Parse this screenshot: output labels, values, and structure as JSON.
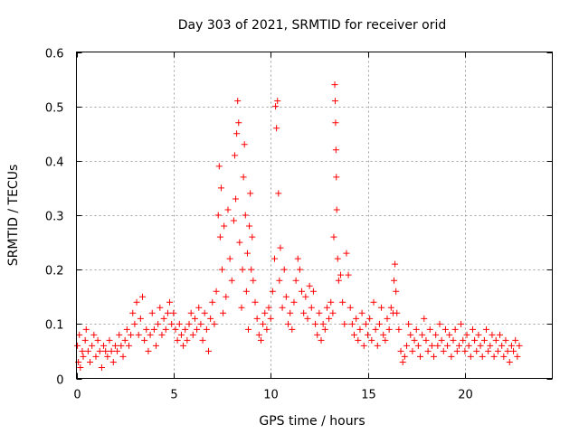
{
  "chart_data": {
    "type": "scatter",
    "title": "Day 303 of 2021, SRMTID for receiver orid",
    "xlabel": "GPS time / hours",
    "ylabel": "SRMTID / TECUs",
    "xlim": [
      0,
      24.5
    ],
    "ylim": [
      0,
      0.6
    ],
    "grid": true,
    "marker": "plus",
    "color": "#ff0000",
    "xticks": [
      0,
      5,
      10,
      15,
      20
    ],
    "xtick_labels": [
      "0",
      "5",
      "10",
      "15",
      "20"
    ],
    "yticks": [
      0,
      0.1,
      0.2,
      0.3,
      0.4,
      0.5,
      0.6
    ],
    "ytick_labels": [
      "0",
      "0.1",
      "0.2",
      "0.3",
      "0.4",
      "0.5",
      "0.6"
    ],
    "series": [
      {
        "name": "SRMTID",
        "points": [
          [
            0.05,
            0.06
          ],
          [
            0.1,
            0.03
          ],
          [
            0.15,
            0.08
          ],
          [
            0.2,
            0.02
          ],
          [
            0.3,
            0.05
          ],
          [
            0.35,
            0.04
          ],
          [
            0.45,
            0.07
          ],
          [
            0.5,
            0.09
          ],
          [
            0.6,
            0.05
          ],
          [
            0.7,
            0.03
          ],
          [
            0.8,
            0.06
          ],
          [
            0.9,
            0.08
          ],
          [
            1.0,
            0.04
          ],
          [
            1.1,
            0.07
          ],
          [
            1.2,
            0.05
          ],
          [
            1.3,
            0.02
          ],
          [
            1.4,
            0.06
          ],
          [
            1.5,
            0.05
          ],
          [
            1.6,
            0.04
          ],
          [
            1.7,
            0.07
          ],
          [
            1.8,
            0.05
          ],
          [
            1.9,
            0.03
          ],
          [
            2.0,
            0.06
          ],
          [
            2.1,
            0.05
          ],
          [
            2.2,
            0.08
          ],
          [
            2.3,
            0.06
          ],
          [
            2.4,
            0.04
          ],
          [
            2.5,
            0.07
          ],
          [
            2.6,
            0.09
          ],
          [
            2.7,
            0.06
          ],
          [
            2.8,
            0.08
          ],
          [
            2.9,
            0.12
          ],
          [
            3.0,
            0.1
          ],
          [
            3.1,
            0.14
          ],
          [
            3.2,
            0.08
          ],
          [
            3.3,
            0.11
          ],
          [
            3.4,
            0.15
          ],
          [
            3.5,
            0.07
          ],
          [
            3.6,
            0.09
          ],
          [
            3.7,
            0.05
          ],
          [
            3.8,
            0.08
          ],
          [
            3.9,
            0.12
          ],
          [
            4.0,
            0.09
          ],
          [
            4.1,
            0.06
          ],
          [
            4.2,
            0.1
          ],
          [
            4.3,
            0.13
          ],
          [
            4.4,
            0.08
          ],
          [
            4.5,
            0.11
          ],
          [
            4.6,
            0.09
          ],
          [
            4.7,
            0.12
          ],
          [
            4.8,
            0.14
          ],
          [
            4.9,
            0.1
          ],
          [
            5.0,
            0.12
          ],
          [
            5.1,
            0.09
          ],
          [
            5.2,
            0.07
          ],
          [
            5.3,
            0.1
          ],
          [
            5.4,
            0.08
          ],
          [
            5.5,
            0.06
          ],
          [
            5.6,
            0.09
          ],
          [
            5.7,
            0.07
          ],
          [
            5.8,
            0.1
          ],
          [
            5.9,
            0.12
          ],
          [
            6.0,
            0.08
          ],
          [
            6.1,
            0.11
          ],
          [
            6.2,
            0.09
          ],
          [
            6.3,
            0.13
          ],
          [
            6.4,
            0.1
          ],
          [
            6.5,
            0.07
          ],
          [
            6.6,
            0.12
          ],
          [
            6.7,
            0.09
          ],
          [
            6.8,
            0.05
          ],
          [
            6.9,
            0.11
          ],
          [
            7.0,
            0.14
          ],
          [
            7.1,
            0.1
          ],
          [
            7.2,
            0.16
          ],
          [
            7.3,
            0.3
          ],
          [
            7.35,
            0.39
          ],
          [
            7.4,
            0.26
          ],
          [
            7.45,
            0.35
          ],
          [
            7.5,
            0.2
          ],
          [
            7.55,
            0.12
          ],
          [
            7.6,
            0.28
          ],
          [
            7.7,
            0.15
          ],
          [
            7.8,
            0.31
          ],
          [
            7.9,
            0.22
          ],
          [
            8.0,
            0.18
          ],
          [
            8.1,
            0.29
          ],
          [
            8.15,
            0.41
          ],
          [
            8.2,
            0.33
          ],
          [
            8.25,
            0.45
          ],
          [
            8.3,
            0.51
          ],
          [
            8.35,
            0.47
          ],
          [
            8.4,
            0.25
          ],
          [
            8.5,
            0.13
          ],
          [
            8.55,
            0.2
          ],
          [
            8.6,
            0.37
          ],
          [
            8.65,
            0.43
          ],
          [
            8.7,
            0.3
          ],
          [
            8.75,
            0.16
          ],
          [
            8.8,
            0.23
          ],
          [
            8.85,
            0.09
          ],
          [
            8.9,
            0.28
          ],
          [
            8.95,
            0.34
          ],
          [
            9.0,
            0.2
          ],
          [
            9.05,
            0.26
          ],
          [
            9.1,
            0.18
          ],
          [
            9.2,
            0.14
          ],
          [
            9.3,
            0.11
          ],
          [
            9.4,
            0.08
          ],
          [
            9.5,
            0.07
          ],
          [
            9.6,
            0.1
          ],
          [
            9.7,
            0.12
          ],
          [
            9.8,
            0.09
          ],
          [
            9.9,
            0.13
          ],
          [
            10.0,
            0.11
          ],
          [
            10.1,
            0.16
          ],
          [
            10.2,
            0.22
          ],
          [
            10.25,
            0.5
          ],
          [
            10.3,
            0.46
          ],
          [
            10.35,
            0.51
          ],
          [
            10.4,
            0.34
          ],
          [
            10.45,
            0.18
          ],
          [
            10.5,
            0.24
          ],
          [
            10.6,
            0.13
          ],
          [
            10.7,
            0.2
          ],
          [
            10.8,
            0.15
          ],
          [
            10.9,
            0.1
          ],
          [
            11.0,
            0.12
          ],
          [
            11.1,
            0.09
          ],
          [
            11.2,
            0.14
          ],
          [
            11.3,
            0.18
          ],
          [
            11.4,
            0.22
          ],
          [
            11.5,
            0.2
          ],
          [
            11.6,
            0.16
          ],
          [
            11.7,
            0.12
          ],
          [
            11.8,
            0.15
          ],
          [
            11.9,
            0.11
          ],
          [
            12.0,
            0.17
          ],
          [
            12.1,
            0.13
          ],
          [
            12.2,
            0.16
          ],
          [
            12.3,
            0.1
          ],
          [
            12.4,
            0.08
          ],
          [
            12.5,
            0.12
          ],
          [
            12.6,
            0.07
          ],
          [
            12.7,
            0.1
          ],
          [
            12.8,
            0.09
          ],
          [
            12.9,
            0.13
          ],
          [
            13.0,
            0.11
          ],
          [
            13.1,
            0.14
          ],
          [
            13.2,
            0.12
          ],
          [
            13.25,
            0.26
          ],
          [
            13.3,
            0.54
          ],
          [
            13.32,
            0.51
          ],
          [
            13.34,
            0.47
          ],
          [
            13.36,
            0.42
          ],
          [
            13.38,
            0.37
          ],
          [
            13.4,
            0.31
          ],
          [
            13.45,
            0.22
          ],
          [
            13.5,
            0.18
          ],
          [
            13.6,
            0.19
          ],
          [
            13.7,
            0.14
          ],
          [
            13.8,
            0.1
          ],
          [
            13.9,
            0.23
          ],
          [
            14.0,
            0.19
          ],
          [
            14.1,
            0.13
          ],
          [
            14.2,
            0.1
          ],
          [
            14.3,
            0.08
          ],
          [
            14.4,
            0.11
          ],
          [
            14.5,
            0.07
          ],
          [
            14.6,
            0.09
          ],
          [
            14.7,
            0.12
          ],
          [
            14.8,
            0.06
          ],
          [
            14.9,
            0.1
          ],
          [
            15.0,
            0.08
          ],
          [
            15.1,
            0.11
          ],
          [
            15.2,
            0.07
          ],
          [
            15.3,
            0.14
          ],
          [
            15.4,
            0.09
          ],
          [
            15.5,
            0.06
          ],
          [
            15.6,
            0.1
          ],
          [
            15.7,
            0.13
          ],
          [
            15.8,
            0.08
          ],
          [
            15.9,
            0.07
          ],
          [
            16.0,
            0.11
          ],
          [
            16.1,
            0.09
          ],
          [
            16.2,
            0.13
          ],
          [
            16.3,
            0.12
          ],
          [
            16.35,
            0.18
          ],
          [
            16.4,
            0.21
          ],
          [
            16.45,
            0.16
          ],
          [
            16.5,
            0.12
          ],
          [
            16.6,
            0.09
          ],
          [
            16.7,
            0.05
          ],
          [
            16.8,
            0.03
          ],
          [
            16.9,
            0.04
          ],
          [
            17.0,
            0.06
          ],
          [
            17.1,
            0.1
          ],
          [
            17.2,
            0.08
          ],
          [
            17.3,
            0.05
          ],
          [
            17.4,
            0.07
          ],
          [
            17.5,
            0.09
          ],
          [
            17.6,
            0.06
          ],
          [
            17.7,
            0.04
          ],
          [
            17.8,
            0.08
          ],
          [
            17.9,
            0.11
          ],
          [
            18.0,
            0.07
          ],
          [
            18.1,
            0.05
          ],
          [
            18.2,
            0.09
          ],
          [
            18.3,
            0.06
          ],
          [
            18.4,
            0.04
          ],
          [
            18.5,
            0.08
          ],
          [
            18.6,
            0.06
          ],
          [
            18.7,
            0.1
          ],
          [
            18.8,
            0.07
          ],
          [
            18.9,
            0.05
          ],
          [
            19.0,
            0.09
          ],
          [
            19.1,
            0.06
          ],
          [
            19.2,
            0.08
          ],
          [
            19.3,
            0.04
          ],
          [
            19.4,
            0.07
          ],
          [
            19.5,
            0.09
          ],
          [
            19.6,
            0.05
          ],
          [
            19.7,
            0.06
          ],
          [
            19.8,
            0.1
          ],
          [
            19.9,
            0.07
          ],
          [
            20.0,
            0.05
          ],
          [
            20.1,
            0.08
          ],
          [
            20.2,
            0.06
          ],
          [
            20.3,
            0.04
          ],
          [
            20.4,
            0.09
          ],
          [
            20.5,
            0.07
          ],
          [
            20.6,
            0.05
          ],
          [
            20.7,
            0.08
          ],
          [
            20.8,
            0.06
          ],
          [
            20.9,
            0.04
          ],
          [
            21.0,
            0.07
          ],
          [
            21.1,
            0.09
          ],
          [
            21.2,
            0.05
          ],
          [
            21.3,
            0.06
          ],
          [
            21.4,
            0.08
          ],
          [
            21.5,
            0.04
          ],
          [
            21.6,
            0.07
          ],
          [
            21.7,
            0.05
          ],
          [
            21.8,
            0.08
          ],
          [
            21.9,
            0.06
          ],
          [
            22.0,
            0.04
          ],
          [
            22.1,
            0.07
          ],
          [
            22.2,
            0.05
          ],
          [
            22.3,
            0.03
          ],
          [
            22.4,
            0.06
          ],
          [
            22.5,
            0.05
          ],
          [
            22.6,
            0.07
          ],
          [
            22.7,
            0.04
          ],
          [
            22.8,
            0.06
          ]
        ]
      }
    ]
  }
}
